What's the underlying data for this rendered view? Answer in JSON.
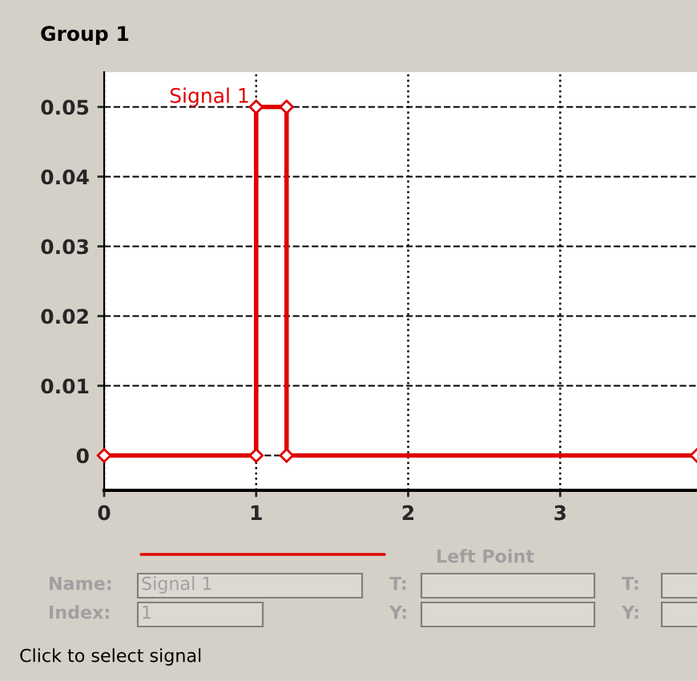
{
  "chart_data": {
    "type": "line",
    "x": [
      0,
      1,
      1,
      1.2,
      1.2,
      3.9
    ],
    "series": [
      {
        "name": "Signal 1",
        "color": "#e00000",
        "values": [
          0,
          0,
          0.05,
          0.05,
          0,
          0
        ]
      }
    ],
    "xlim": [
      0,
      3.9
    ],
    "xticks": [
      0,
      1,
      2,
      3
    ],
    "ylim": [
      -0.005,
      0.055
    ],
    "yticks": [
      0,
      0.01,
      0.02,
      0.03,
      0.04,
      0.05
    ],
    "grid": true,
    "marker": "diamond",
    "line_style": "solid",
    "legend": false,
    "annotations": [
      "Group 1",
      "Left Point",
      "Name:",
      "Signal 1",
      "Index:",
      "1",
      "T:",
      "Y:",
      "T:",
      "Y:",
      "Click to select signal"
    ]
  }
}
